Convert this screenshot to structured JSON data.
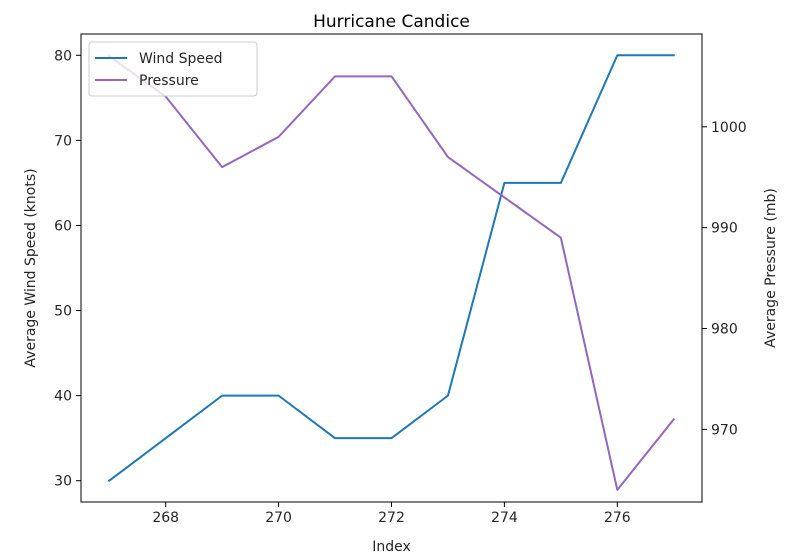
{
  "chart_data": {
    "type": "line",
    "title": "Hurricane Candice",
    "xlabel": "Index",
    "ylabel_left": "Average Wind Speed (knots)",
    "ylabel_right": "Average Pressure (mb)",
    "x": [
      267,
      268,
      269,
      270,
      271,
      272,
      273,
      274,
      275,
      276,
      277
    ],
    "xlim": [
      266.5,
      277.5
    ],
    "xticks": [
      268,
      270,
      272,
      274,
      276
    ],
    "ylim_left": [
      27.5,
      82.5
    ],
    "yticks_left": [
      30,
      40,
      50,
      60,
      70,
      80
    ],
    "ylim_right": [
      962.8,
      1009.2
    ],
    "yticks_right": [
      970,
      980,
      990,
      1000
    ],
    "grid": false,
    "legend_position": "top-left",
    "series": [
      {
        "name": "Wind Speed",
        "axis": "left",
        "color": "#1f77b4",
        "values": [
          30,
          35,
          40,
          40,
          35,
          35,
          40,
          65,
          65,
          80,
          80
        ]
      },
      {
        "name": "Pressure",
        "axis": "right",
        "color": "#9467bd",
        "values": [
          1007,
          1003,
          996,
          999,
          1005,
          1005,
          997,
          993,
          989,
          964,
          971
        ]
      }
    ]
  }
}
